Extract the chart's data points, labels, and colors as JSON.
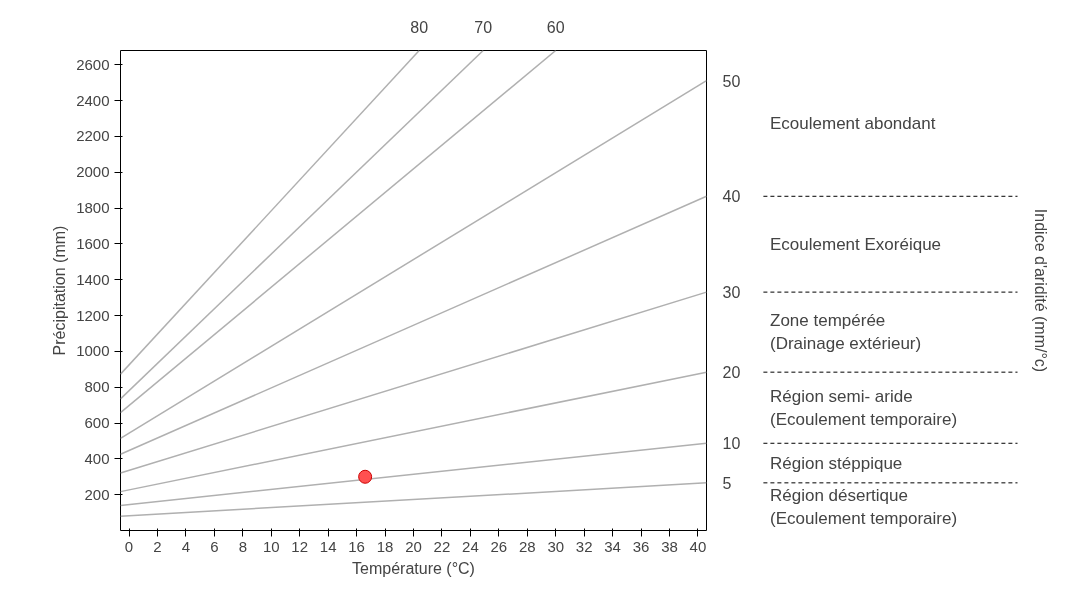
{
  "chart_data": {
    "type": "line",
    "xlabel": "Température (°C)",
    "ylabel": "Précipitation (mm)",
    "xlim": [
      -0.6,
      40.6
    ],
    "ylim": [
      0,
      2680
    ],
    "xticks": [
      0,
      2,
      4,
      6,
      8,
      10,
      12,
      14,
      16,
      18,
      20,
      22,
      24,
      26,
      28,
      30,
      32,
      34,
      36,
      38,
      40
    ],
    "yticks": [
      200,
      400,
      600,
      800,
      1000,
      1200,
      1400,
      1600,
      1800,
      2000,
      2200,
      2400,
      2600
    ],
    "grid": false,
    "series": [
      {
        "name": "5",
        "color": "#b0b0b0",
        "x": [
          -0.6,
          40.6
        ],
        "values": [
          80,
          266
        ]
      },
      {
        "name": "10",
        "color": "#b0b0b0",
        "x": [
          -0.6,
          40.6
        ],
        "values": [
          140,
          487
        ]
      },
      {
        "name": "20",
        "color": "#b0b0b0",
        "x": [
          -0.6,
          40.6
        ],
        "values": [
          217,
          884
        ]
      },
      {
        "name": "30",
        "color": "#b0b0b0",
        "x": [
          -0.6,
          40.6
        ],
        "values": [
          321,
          1331
        ]
      },
      {
        "name": "40",
        "color": "#b0b0b0",
        "x": [
          -0.6,
          40.6
        ],
        "values": [
          426,
          1866
        ]
      },
      {
        "name": "50",
        "color": "#b0b0b0",
        "x": [
          -0.6,
          40.6
        ],
        "values": [
          514,
          2512
        ]
      },
      {
        "name": "60",
        "color": "#b0b0b0",
        "x": [
          -0.6,
          30.0
        ],
        "values": [
          658,
          2680
        ]
      },
      {
        "name": "70",
        "color": "#b0b0b0",
        "x": [
          -0.6,
          24.9
        ],
        "values": [
          735,
          2680
        ]
      },
      {
        "name": "80",
        "color": "#b0b0b0",
        "x": [
          -0.6,
          20.4
        ],
        "values": [
          873,
          2680
        ]
      },
      {
        "type": "scatter",
        "color": "#ff5050",
        "marker": "circle",
        "x": [
          16.6
        ],
        "values": [
          300
        ]
      }
    ],
    "annotations": [
      "Ecoulement abondant",
      "Ecoulement Exoréique",
      "Zone tempérée\n(Drainage extérieur)",
      "Région semi- aride\n(Ecoulement temporaire)",
      "Région stéppique",
      "Région désertique\n(Ecoulement temporaire)",
      "Indice d'aridité (mm/°c)"
    ]
  }
}
